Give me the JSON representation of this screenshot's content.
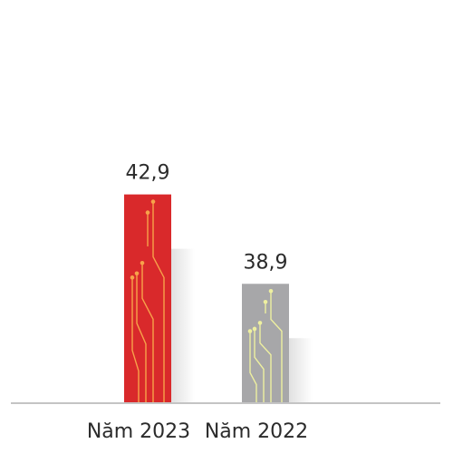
{
  "chart_data": {
    "type": "bar",
    "categories": [
      "Năm 2023",
      "Năm 2022"
    ],
    "values": [
      42.9,
      38.9
    ],
    "value_labels": [
      "42,9",
      "38,9"
    ],
    "colors": [
      "#d9292b",
      "#a7a7a9"
    ],
    "ylim": [
      33.6,
      51.6
    ]
  }
}
